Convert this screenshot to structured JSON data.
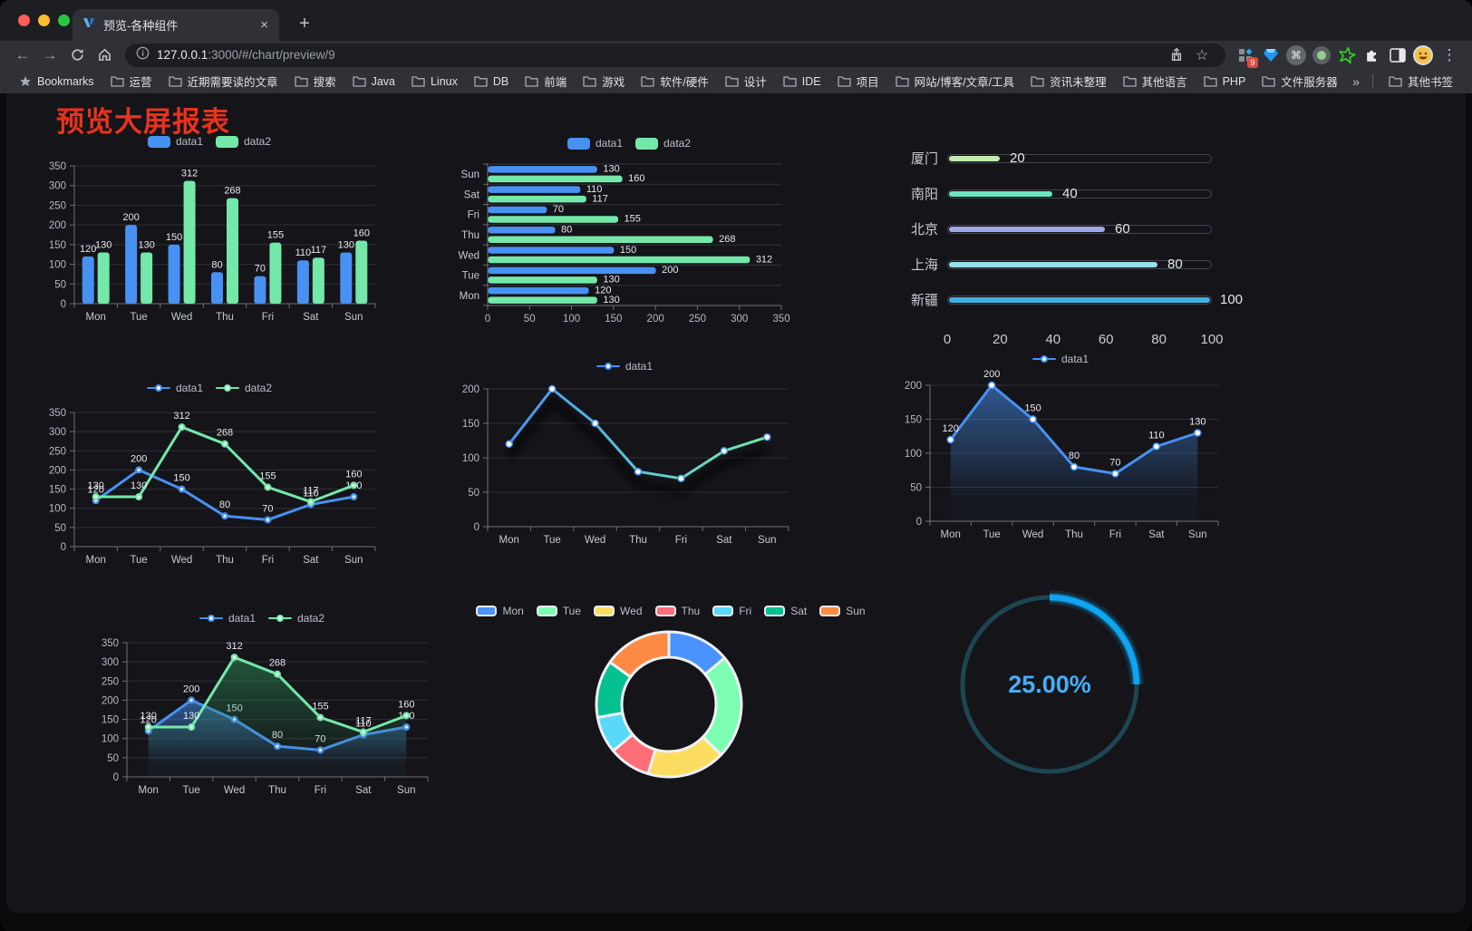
{
  "browser": {
    "tab": {
      "title": "预览-各种组件"
    },
    "icons": {
      "back": "←",
      "forward": "→",
      "close": "×",
      "new_tab": "+",
      "menu": "⋮",
      "star": "☆",
      "command": "⌘",
      "overflow": "»"
    },
    "address": {
      "host": "127.0.0.1",
      "rest": ":3000/#/chart/preview/9",
      "extension_badge": "9"
    },
    "bookmarks": {
      "star_label": "Bookmarks",
      "folders": [
        "运营",
        "近期需要读的文章",
        "搜索",
        "Java",
        "Linux",
        "DB",
        "前端",
        "游戏",
        "软件/硬件",
        "设计",
        "IDE",
        "项目",
        "网站/博客/文章/工具",
        "资讯未整理",
        "其他语言",
        "PHP",
        "文件服务器"
      ],
      "other_label": "其他书签"
    }
  },
  "page": {
    "title": "预览大屏报表",
    "title_color": "#e8321c"
  },
  "chart_data": [
    {
      "id": "bar-grouped",
      "type": "bar",
      "legend_marker": "rect",
      "categories": [
        "Mon",
        "Tue",
        "Wed",
        "Thu",
        "Fri",
        "Sat",
        "Sun"
      ],
      "series": [
        {
          "name": "data1",
          "color": "#4791f2",
          "values": [
            120,
            200,
            150,
            80,
            70,
            110,
            130
          ]
        },
        {
          "name": "data2",
          "color": "#73e8a9",
          "values": [
            130,
            130,
            312,
            268,
            155,
            117,
            160
          ]
        }
      ],
      "ylim": [
        0,
        350
      ],
      "ytick_step": 50,
      "grid": true,
      "legend_position": "top"
    },
    {
      "id": "bar-horizontal",
      "type": "hbar",
      "legend_marker": "rect",
      "categories": [
        "Sun",
        "Sat",
        "Fri",
        "Thu",
        "Wed",
        "Tue",
        "Mon"
      ],
      "series": [
        {
          "name": "data1",
          "color": "#4791f2",
          "values": [
            130,
            110,
            70,
            80,
            150,
            200,
            120
          ]
        },
        {
          "name": "data2",
          "color": "#73e8a9",
          "values": [
            160,
            117,
            155,
            268,
            312,
            130,
            130
          ]
        }
      ],
      "xlim": [
        0,
        350
      ],
      "xtick_step": 50,
      "grid": true,
      "legend_position": "top"
    },
    {
      "id": "progress",
      "type": "progress",
      "max": 100,
      "ticks": [
        0,
        20,
        40,
        60,
        80,
        100
      ],
      "items": [
        {
          "label": "厦门",
          "value": 20,
          "color": "#c4ebad"
        },
        {
          "label": "南阳",
          "value": 40,
          "color": "#6be6c1"
        },
        {
          "label": "北京",
          "value": 60,
          "color": "#a0a7e6"
        },
        {
          "label": "上海",
          "value": 80,
          "color": "#96dee8"
        },
        {
          "label": "新疆",
          "value": 100,
          "color": "#3fb1e3"
        }
      ]
    },
    {
      "id": "line-double",
      "type": "line",
      "legend_marker": "line",
      "marker": "solid",
      "show_labels": true,
      "categories": [
        "Mon",
        "Tue",
        "Wed",
        "Thu",
        "Fri",
        "Sat",
        "Sun"
      ],
      "series": [
        {
          "name": "data1",
          "color": "#4791f2",
          "values": [
            120,
            200,
            150,
            80,
            70,
            110,
            130
          ]
        },
        {
          "name": "data2",
          "color": "#73e8a9",
          "values": [
            130,
            130,
            312,
            268,
            155,
            117,
            160
          ]
        }
      ],
      "ylim": [
        0,
        350
      ],
      "ytick_step": 50,
      "grid": true,
      "legend_position": "top"
    },
    {
      "id": "line-gradient",
      "type": "line",
      "legend_marker": "line",
      "marker": "hollow",
      "show_labels": false,
      "shadow": true,
      "categories": [
        "Mon",
        "Tue",
        "Wed",
        "Thu",
        "Fri",
        "Sat",
        "Sun"
      ],
      "series": [
        {
          "name": "data1",
          "color": "#4791f2",
          "gradient": [
            "#4791f2",
            "#5ac8d8",
            "#73e8a9"
          ],
          "values": [
            120,
            200,
            150,
            80,
            70,
            110,
            130
          ]
        }
      ],
      "ylim": [
        0,
        200
      ],
      "ytick_step": 50,
      "grid": true,
      "legend_position": "top"
    },
    {
      "id": "area-single",
      "type": "line",
      "legend_marker": "line",
      "marker": "hollow",
      "show_labels": true,
      "categories": [
        "Mon",
        "Tue",
        "Wed",
        "Thu",
        "Fri",
        "Sat",
        "Sun"
      ],
      "series": [
        {
          "name": "data1",
          "color": "#4791f2",
          "area": "71,145,242",
          "values": [
            120,
            200,
            150,
            80,
            70,
            110,
            130
          ]
        }
      ],
      "ylim": [
        0,
        200
      ],
      "ytick_step": 50,
      "grid": true,
      "legend_position": "top"
    },
    {
      "id": "area-double",
      "type": "line",
      "legend_marker": "line",
      "marker": "solid",
      "show_labels": true,
      "categories": [
        "Mon",
        "Tue",
        "Wed",
        "Thu",
        "Fri",
        "Sat",
        "Sun"
      ],
      "series": [
        {
          "name": "data1",
          "color": "#4791f2",
          "area": "71,145,242",
          "values": [
            120,
            200,
            150,
            80,
            70,
            110,
            130
          ]
        },
        {
          "name": "data2",
          "color": "#73e8a9",
          "area": "45,140,85",
          "values": [
            130,
            130,
            312,
            268,
            155,
            117,
            160
          ]
        }
      ],
      "ylim": [
        0,
        350
      ],
      "ytick_step": 50,
      "grid": true,
      "legend_position": "top"
    },
    {
      "id": "donut",
      "type": "pie",
      "labels": [
        "Mon",
        "Tue",
        "Wed",
        "Thu",
        "Fri",
        "Sat",
        "Sun"
      ],
      "values": [
        120,
        200,
        150,
        80,
        70,
        110,
        130
      ],
      "colors": [
        "#4992ff",
        "#7cffb2",
        "#fddd60",
        "#ff6e76",
        "#58d9f9",
        "#05c091",
        "#ff8a45"
      ],
      "border_color": "#eef1f5",
      "legend_position": "top"
    },
    {
      "id": "gauge",
      "type": "gauge",
      "value": 25,
      "max": 100,
      "display": "25.00%",
      "color": "#0ea5f1",
      "track_color": "#1d4552",
      "text_color": "#47aef8"
    }
  ]
}
